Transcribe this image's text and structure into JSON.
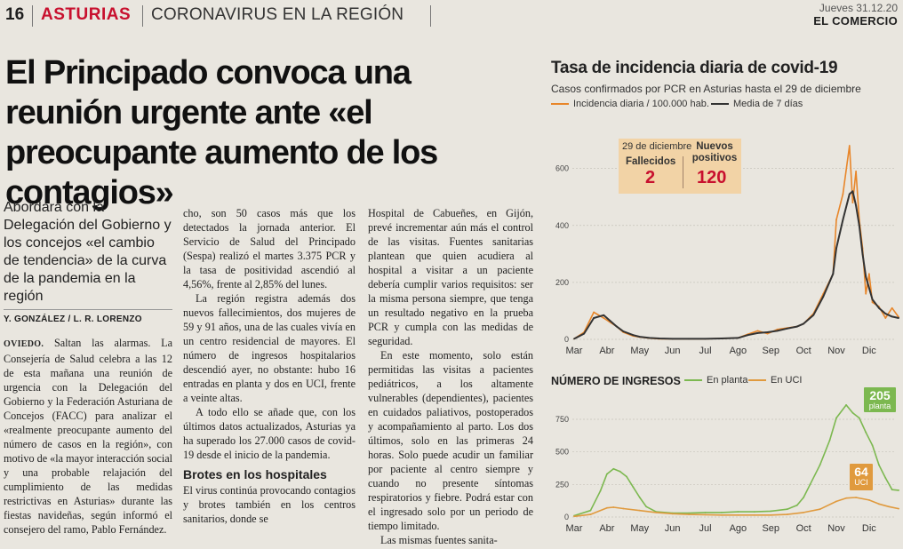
{
  "header": {
    "page_number": "16",
    "section": "ASTURIAS",
    "subsection": "CORONAVIRUS EN LA REGIÓN",
    "date": "Jueves 31.12.20",
    "publication": "EL COMERCIO"
  },
  "article": {
    "headline": "El Principado convoca una reunión urgente ante «el preocupante aumento de los contagios»",
    "deck": "Abordará con la Delegación del Gobierno y los concejos «el cambio de tendencia» de la curva de la pandemia en la región",
    "byline": "Y. GONZÁLEZ / L. R. LORENZO",
    "col1": {
      "place": "OVIEDO.",
      "text": "Saltan las alarmas. La Consejería de Salud celebra a las 12 de esta mañana una reunión de urgencia con la Delegación del Gobierno y la Federación Asturiana de Concejos (FACC) para analizar el «realmente preocupante aumento del número de casos en la región», con motivo de «la mayor interacción social y una probable relajación del cumplimiento de las medidas restrictivas en Asturias» durante las fiestas navideñas, según informó el consejero del ramo, Pablo Fernández."
    },
    "col2": {
      "p1": "cho, son 50 casos más que los detectados la jornada anterior. El Servicio de Salud del Principado (Sespa) realizó el martes 3.375 PCR y la tasa de positividad ascendió al 4,56%, frente al 2,85% del lunes.",
      "p2": "La región registra además dos nuevos fallecimientos, dos mujeres de 59 y 91 años, una de las cuales vivía en un centro residencial de mayores. El número de ingresos hospitalarios descendió ayer, no obstante: hubo 16 entradas en planta y dos en UCI, frente a veinte altas.",
      "p3": "A todo ello se añade que, con los últimos datos actualizados, Asturias ya ha superado los 27.000 casos de covid-19 desde el inicio de la pandemia.",
      "subhead": "Brotes en los hospitales",
      "p4": "El virus continúa provocando contagios y brotes también en los centros sanitarios, donde se"
    },
    "col3": {
      "p1": "Hospital de Cabueñes, en Gijón, prevé incrementar aún más el control de las visitas. Fuentes sanitarias plantean que quien acudiera al hospital a visitar a un paciente debería cumplir varios requisitos: ser la misma persona siempre, que tenga un resultado negativo en la prueba PCR y cumpla con las medidas de seguridad.",
      "p2": "En este momento, solo están permitidas las visitas a pacientes pediátricos, a los altamente vulnerables (dependientes), pacientes en cuidados paliativos, postoperados y acompañamiento al parto. Los dos últimos, solo en las primeras 24 horas. Solo puede acudir un familiar por paciente al centro siempre y cuando no presente síntomas respiratorios y fiebre. Podrá estar con el ingresado solo por un periodo de tiempo limitado.",
      "p3": "Las mismas fuentes sanita-"
    }
  },
  "infobox": {
    "date_label": "29 de diciembre",
    "deaths_label": "Fallecidos",
    "deaths_value": "2",
    "new_label": "Nuevos positivos",
    "new_value": "120"
  },
  "colors": {
    "daily": "#e8862a",
    "average": "#333333",
    "planta": "#7cb850",
    "uci": "#e09a3e",
    "infobox_bg": "#f2d3a6",
    "infobox_value": "#c8102e",
    "section_red": "#c8102e"
  },
  "chart_data": [
    {
      "type": "line",
      "title": "Tasa de incidencia diaria de covid-19",
      "subtitle": "Casos confirmados por PCR en Asturias hasta el 29 de diciembre",
      "x_tick_labels": [
        "Mar",
        "Abr",
        "May",
        "Jun",
        "Jul",
        "Ago",
        "Sep",
        "Oct",
        "Nov",
        "Dic"
      ],
      "y_ticks": [
        0,
        200,
        400,
        600
      ],
      "ylim": [
        0,
        680
      ],
      "grid": "horizontal",
      "legend_position": "top",
      "series": [
        {
          "name": "Incidencia diaria / 100.000 hab.",
          "t": [
            0,
            0.3,
            0.6,
            0.9,
            1.1,
            1.3,
            1.5,
            1.8,
            2.0,
            2.3,
            2.6,
            3.0,
            3.5,
            4.0,
            4.5,
            5.0,
            5.3,
            5.6,
            5.9,
            6.2,
            6.5,
            6.8,
            7.0,
            7.3,
            7.6,
            7.9,
            8.0,
            8.2,
            8.4,
            8.5,
            8.6,
            8.7,
            8.8,
            8.9,
            9.0,
            9.1,
            9.3,
            9.5,
            9.7,
            9.9
          ],
          "values": [
            2,
            25,
            95,
            75,
            60,
            45,
            25,
            12,
            8,
            4,
            2,
            2,
            2,
            2,
            3,
            5,
            18,
            30,
            20,
            35,
            40,
            45,
            55,
            90,
            160,
            230,
            420,
            510,
            780,
            480,
            590,
            420,
            320,
            160,
            230,
            130,
            115,
            75,
            110,
            78
          ]
        },
        {
          "name": "Media de 7 días",
          "t": [
            0,
            0.3,
            0.6,
            0.9,
            1.1,
            1.3,
            1.5,
            1.8,
            2.0,
            2.3,
            2.6,
            3.0,
            3.5,
            4.0,
            4.5,
            5.0,
            5.3,
            5.6,
            5.9,
            6.2,
            6.5,
            6.8,
            7.0,
            7.3,
            7.6,
            7.9,
            8.0,
            8.2,
            8.4,
            8.5,
            8.6,
            8.7,
            8.8,
            8.9,
            9.0,
            9.1,
            9.3,
            9.5,
            9.7,
            9.9
          ],
          "values": [
            2,
            20,
            75,
            85,
            65,
            45,
            28,
            15,
            9,
            5,
            3,
            2,
            2,
            2,
            3,
            5,
            15,
            22,
            25,
            30,
            38,
            45,
            55,
            85,
            150,
            230,
            320,
            420,
            510,
            520,
            470,
            400,
            300,
            220,
            180,
            140,
            110,
            90,
            80,
            75
          ]
        }
      ]
    },
    {
      "type": "line",
      "title": "NÚMERO DE INGRESOS",
      "x_tick_labels": [
        "Mar",
        "Abr",
        "May",
        "Jun",
        "Jul",
        "Ago",
        "Sep",
        "Oct",
        "Nov",
        "Dic"
      ],
      "y_ticks": [
        0,
        250,
        500,
        750
      ],
      "ylim": [
        0,
        900
      ],
      "grid": "horizontal",
      "legend_position": "top",
      "end_labels": [
        {
          "series": "En planta",
          "value": "205",
          "text": "planta"
        },
        {
          "series": "En UCI",
          "value": "64",
          "text": "UCI"
        }
      ],
      "series": [
        {
          "name": "En planta",
          "t": [
            0,
            0.5,
            0.8,
            1.0,
            1.2,
            1.4,
            1.6,
            1.8,
            2.0,
            2.2,
            2.5,
            3.0,
            3.5,
            4.0,
            4.5,
            5.0,
            5.5,
            6.0,
            6.5,
            6.8,
            7.0,
            7.2,
            7.5,
            7.8,
            8.0,
            8.3,
            8.5,
            8.7,
            8.9,
            9.1,
            9.3,
            9.5,
            9.7,
            9.9
          ],
          "values": [
            10,
            50,
            200,
            330,
            370,
            350,
            310,
            230,
            150,
            80,
            40,
            30,
            30,
            35,
            35,
            40,
            40,
            45,
            60,
            90,
            150,
            250,
            400,
            590,
            760,
            860,
            800,
            760,
            650,
            550,
            400,
            300,
            210,
            205
          ]
        },
        {
          "name": "En UCI",
          "t": [
            0,
            0.5,
            1.0,
            1.2,
            1.5,
            2.0,
            2.5,
            3.0,
            3.5,
            4.0,
            4.5,
            5.0,
            5.5,
            6.0,
            6.5,
            7.0,
            7.5,
            8.0,
            8.3,
            8.6,
            9.0,
            9.3,
            9.6,
            9.9
          ],
          "values": [
            5,
            20,
            70,
            75,
            65,
            50,
            35,
            25,
            20,
            18,
            15,
            15,
            15,
            15,
            20,
            35,
            60,
            120,
            145,
            150,
            130,
            100,
            80,
            64
          ]
        }
      ]
    }
  ]
}
